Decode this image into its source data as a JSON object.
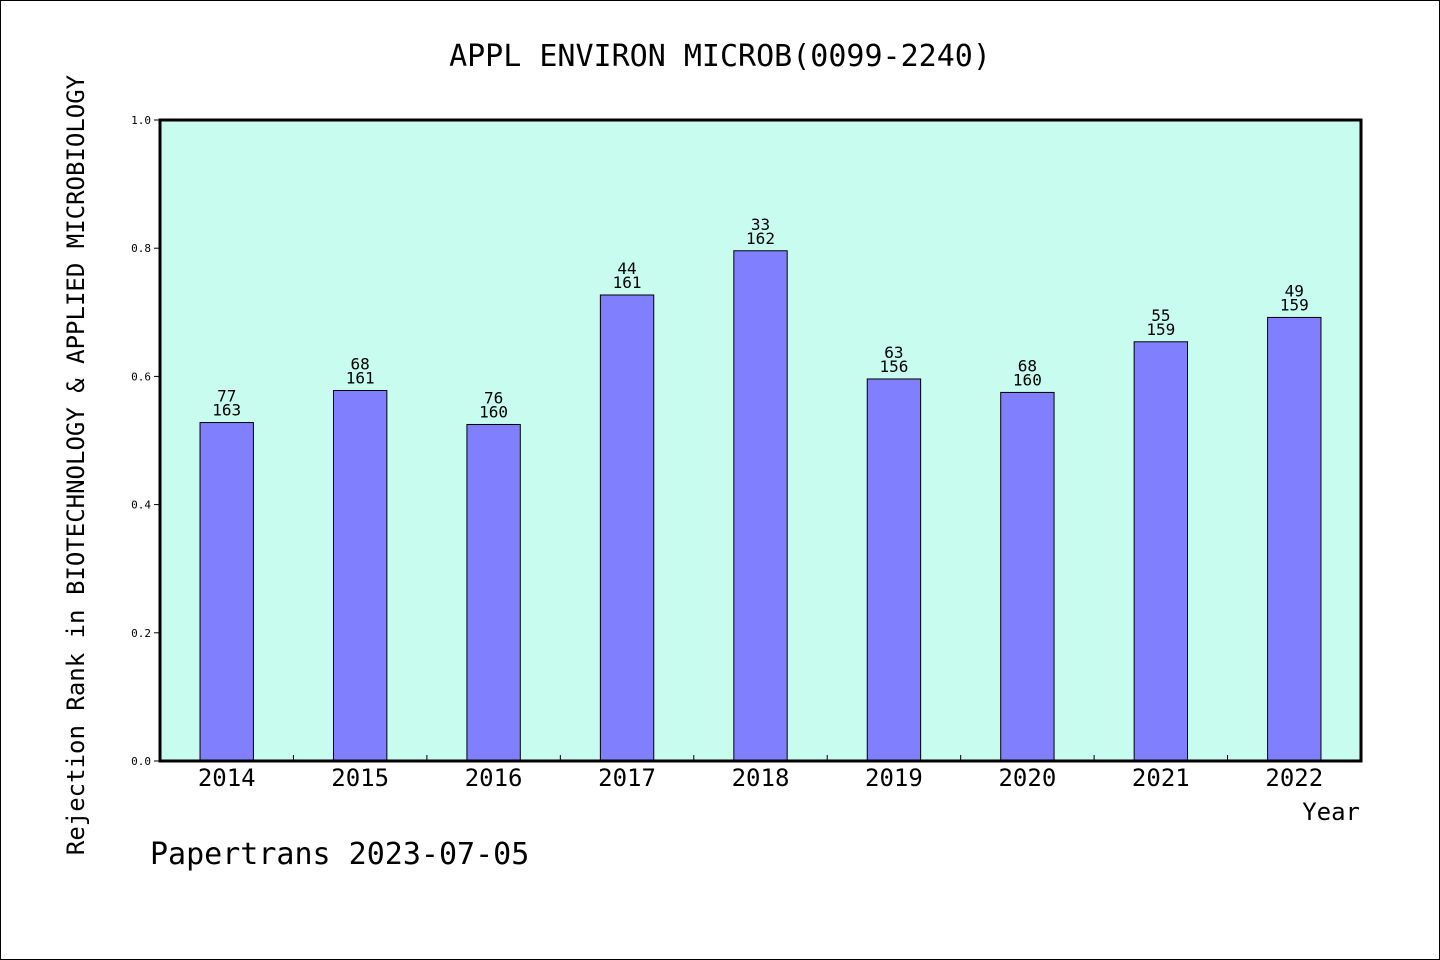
{
  "chart_data": {
    "type": "bar",
    "title": "APPL ENVIRON MICROB(0099-2240)",
    "xlabel": "Year",
    "ylabel": "Rejection Rank in BIOTECHNOLOGY & APPLIED MICROBIOLOGY",
    "categories": [
      "2014",
      "2015",
      "2016",
      "2017",
      "2018",
      "2019",
      "2020",
      "2021",
      "2022"
    ],
    "values": [
      0.528,
      0.578,
      0.525,
      0.727,
      0.796,
      0.596,
      0.575,
      0.654,
      0.692
    ],
    "label_top": [
      "77",
      "68",
      "76",
      "44",
      "33",
      "63",
      "68",
      "55",
      "49"
    ],
    "label_bottom": [
      "163",
      "161",
      "160",
      "161",
      "162",
      "156",
      "160",
      "159",
      "159"
    ],
    "ylim": [
      0,
      1.0
    ],
    "yticks": [
      "0.0",
      "0.2",
      "0.4",
      "0.6",
      "0.8",
      "1.0"
    ],
    "grid": false,
    "colors": {
      "plot_bg": "#c8fcee",
      "bar": "#8080ff",
      "frame": "#000000"
    }
  },
  "footer": {
    "watermark": "Papertrans 2023-07-05"
  }
}
